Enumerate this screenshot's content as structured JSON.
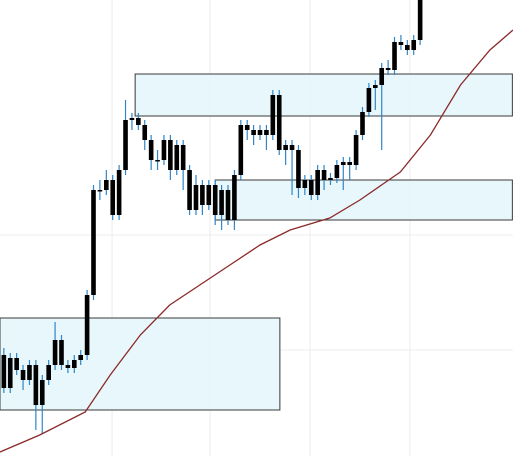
{
  "chart_data": {
    "type": "candlestick",
    "xlim": [
      -0.6,
      79.5
    ],
    "ylim": [
      0,
      456
    ],
    "xgrid": [
      16.9,
      32.2,
      47.8,
      63.4
    ],
    "ygrid": [
      106,
      221
    ],
    "up_color": "#000000",
    "down_color": "#000000",
    "wick_color": "#2f86c8",
    "candles": [
      [
        101,
        108,
        63,
        68
      ],
      [
        68,
        103,
        63,
        98
      ],
      [
        98,
        103,
        81,
        86
      ],
      [
        86,
        91,
        66,
        76
      ],
      [
        76,
        96,
        71,
        91
      ],
      [
        91,
        96,
        26,
        51
      ],
      [
        51,
        81,
        22,
        76
      ],
      [
        76,
        96,
        71,
        91
      ],
      [
        91,
        134,
        86,
        116
      ],
      [
        116,
        121,
        86,
        91
      ],
      [
        91,
        96,
        83,
        88
      ],
      [
        88,
        101,
        83,
        96
      ],
      [
        96,
        106,
        91,
        101
      ],
      [
        101,
        166,
        96,
        161
      ],
      [
        161,
        271,
        156,
        266
      ],
      [
        266,
        276,
        256,
        266
      ],
      [
        266,
        286,
        261,
        276
      ],
      [
        276,
        281,
        236,
        241
      ],
      [
        241,
        291,
        236,
        286
      ],
      [
        286,
        356,
        281,
        336
      ],
      [
        336,
        343,
        326,
        338
      ],
      [
        338,
        343,
        326,
        331
      ],
      [
        331,
        336,
        306,
        316
      ],
      [
        316,
        321,
        286,
        296
      ],
      [
        296,
        306,
        286,
        296
      ],
      [
        296,
        321,
        291,
        316
      ],
      [
        316,
        321,
        276,
        286
      ],
      [
        286,
        316,
        281,
        311
      ],
      [
        311,
        316,
        266,
        286
      ],
      [
        286,
        291,
        241,
        246
      ],
      [
        246,
        281,
        241,
        271
      ],
      [
        271,
        276,
        241,
        251
      ],
      [
        251,
        276,
        246,
        271
      ],
      [
        271,
        276,
        231,
        241
      ],
      [
        241,
        271,
        226,
        266
      ],
      [
        266,
        271,
        231,
        236
      ],
      [
        236,
        286,
        226,
        281
      ],
      [
        281,
        336,
        276,
        331
      ],
      [
        331,
        336,
        316,
        326
      ],
      [
        326,
        331,
        311,
        321
      ],
      [
        321,
        331,
        316,
        326
      ],
      [
        326,
        331,
        306,
        321
      ],
      [
        321,
        366,
        316,
        361
      ],
      [
        361,
        366,
        301,
        306
      ],
      [
        306,
        316,
        291,
        311
      ],
      [
        311,
        316,
        261,
        306
      ],
      [
        306,
        311,
        258,
        268
      ],
      [
        268,
        281,
        261,
        276
      ],
      [
        276,
        281,
        256,
        261
      ],
      [
        261,
        291,
        256,
        286
      ],
      [
        286,
        291,
        266,
        276
      ],
      [
        276,
        283,
        271,
        278
      ],
      [
        278,
        296,
        273,
        291
      ],
      [
        291,
        299,
        266,
        294
      ],
      [
        294,
        299,
        276,
        291
      ],
      [
        291,
        326,
        286,
        321
      ],
      [
        321,
        349,
        316,
        344
      ],
      [
        344,
        373,
        339,
        368
      ],
      [
        368,
        376,
        346,
        371
      ],
      [
        371,
        393,
        306,
        388
      ],
      [
        388,
        396,
        381,
        386
      ],
      [
        386,
        419,
        381,
        414
      ],
      [
        414,
        421,
        406,
        411
      ],
      [
        411,
        416,
        401,
        406
      ],
      [
        406,
        421,
        401,
        416
      ],
      [
        416,
        456,
        411,
        456
      ]
    ],
    "moving_average": {
      "color": "#8b2a2a",
      "x": [
        -0.6,
        5.6,
        12.7,
        16.6,
        21.3,
        25.9,
        30.6,
        35.3,
        40,
        44.7,
        50.9,
        55.6,
        61.9,
        66.6,
        71.3,
        75.9,
        79.5
      ],
      "values": [
        4,
        21,
        44,
        81,
        121,
        151,
        171,
        191,
        211,
        226,
        238,
        256,
        284,
        321,
        371,
        406,
        426
      ]
    },
    "zones": [
      {
        "x": [
          -0.6,
          43.1
        ],
        "y": [
          46,
          138
        ]
      },
      {
        "x": [
          20.5,
          79.4
        ],
        "y": [
          340,
          382
        ]
      },
      {
        "x": [
          33,
          79.4
        ],
        "y": [
          236,
          276
        ]
      }
    ],
    "zone_fill": "#e3f6fa",
    "zone_stroke": "#3a3a3a"
  }
}
